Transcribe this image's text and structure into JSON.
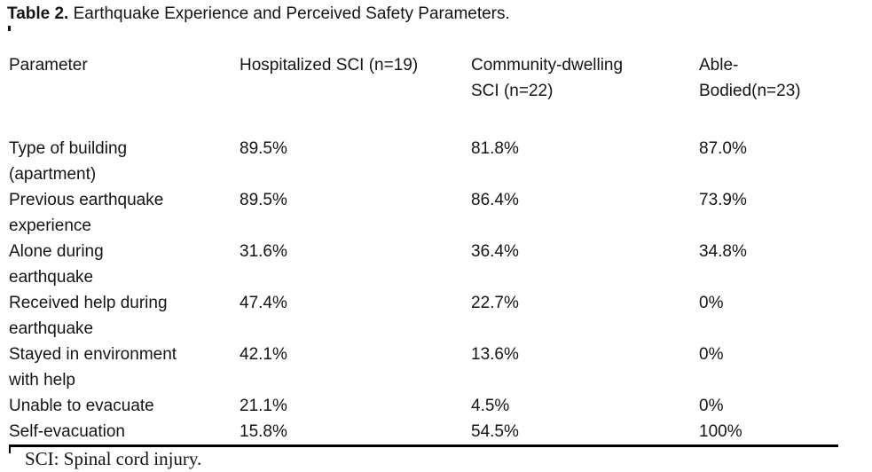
{
  "caption": {
    "label": "Table 2.",
    "text": "Earthquake Experience and Perceived Safety Parameters."
  },
  "table": {
    "columns": [
      "Parameter",
      "Hospitalized SCI (n=19)",
      "Community-dwelling\nSCI (n=22)",
      "Able-Bodied(n=23)"
    ],
    "rows": [
      {
        "parameter": "Type of building\n(apartment)",
        "values": [
          "89.5%",
          "81.8%",
          "87.0%"
        ]
      },
      {
        "parameter": "Previous earthquake\nexperience",
        "values": [
          "89.5%",
          "86.4%",
          "73.9%"
        ]
      },
      {
        "parameter": "Alone during\nearthquake",
        "values": [
          "31.6%",
          "36.4%",
          "34.8%"
        ]
      },
      {
        "parameter": "Received help during\nearthquake",
        "values": [
          "47.4%",
          "22.7%",
          "0%"
        ]
      },
      {
        "parameter": "Stayed in environment\nwith help",
        "values": [
          "42.1%",
          "13.6%",
          "0%"
        ]
      },
      {
        "parameter": "Unable to evacuate",
        "values": [
          "21.1%",
          "4.5%",
          "0%"
        ]
      },
      {
        "parameter": "Self-evacuation",
        "values": [
          "15.8%",
          "54.5%",
          "100%"
        ]
      }
    ]
  },
  "footnote": "SCI: Spinal cord injury.",
  "colors": {
    "text": "#141414",
    "background": "#ffffff",
    "rule": "#000000"
  }
}
